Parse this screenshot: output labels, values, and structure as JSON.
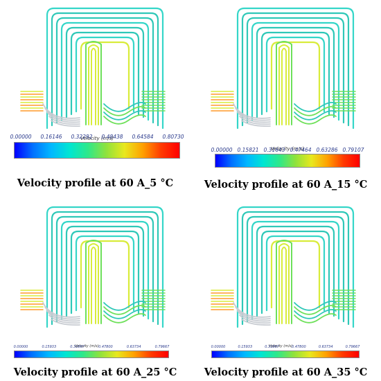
{
  "colorbar_gradient": [
    "#0000ff",
    "#0070ff",
    "#00b8ff",
    "#00e6d2",
    "#2ee88a",
    "#8fe23c",
    "#e8e81e",
    "#ffa000",
    "#ff3a00",
    "#ff0000"
  ],
  "pipe_colors": {
    "cyan": "#34d6c8",
    "teal": "#2fc8b8",
    "green": "#6ee05a",
    "yellow": "#d8ec3a",
    "grey": "#c8ccd2",
    "orange": "#ff9a2a"
  },
  "panels": [
    {
      "caption": "Velocity profile at 60 A_5 °C",
      "colorbar": {
        "title": "Velocity (m/s)",
        "ticks": [
          "0.00000",
          "0.16146",
          "0.32292",
          "0.48438",
          "0.64584",
          "0.80730"
        ]
      }
    },
    {
      "caption": "Velocity profile at 60 A_15 °C",
      "colorbar": {
        "title": "Velocity (m/s)",
        "ticks": [
          "0.00000",
          "0.15821",
          "0.31643",
          "0.47464",
          "0.63286",
          "0.79107"
        ]
      }
    },
    {
      "caption": "Velocity profile at 60 A_25 °C",
      "colorbar": {
        "title": "Velocity (m/s)",
        "ticks": [
          "0.00000",
          "0.15933",
          "0.31867",
          "0.47800",
          "0.63734",
          "0.79667"
        ]
      }
    },
    {
      "caption": "Velocity profile at 60 A_35 °C",
      "colorbar": {
        "title": "Velocity (m/s)",
        "ticks": [
          "0.00000",
          "0.15933",
          "0.31867",
          "0.47800",
          "0.63734",
          "0.79667"
        ]
      }
    }
  ]
}
